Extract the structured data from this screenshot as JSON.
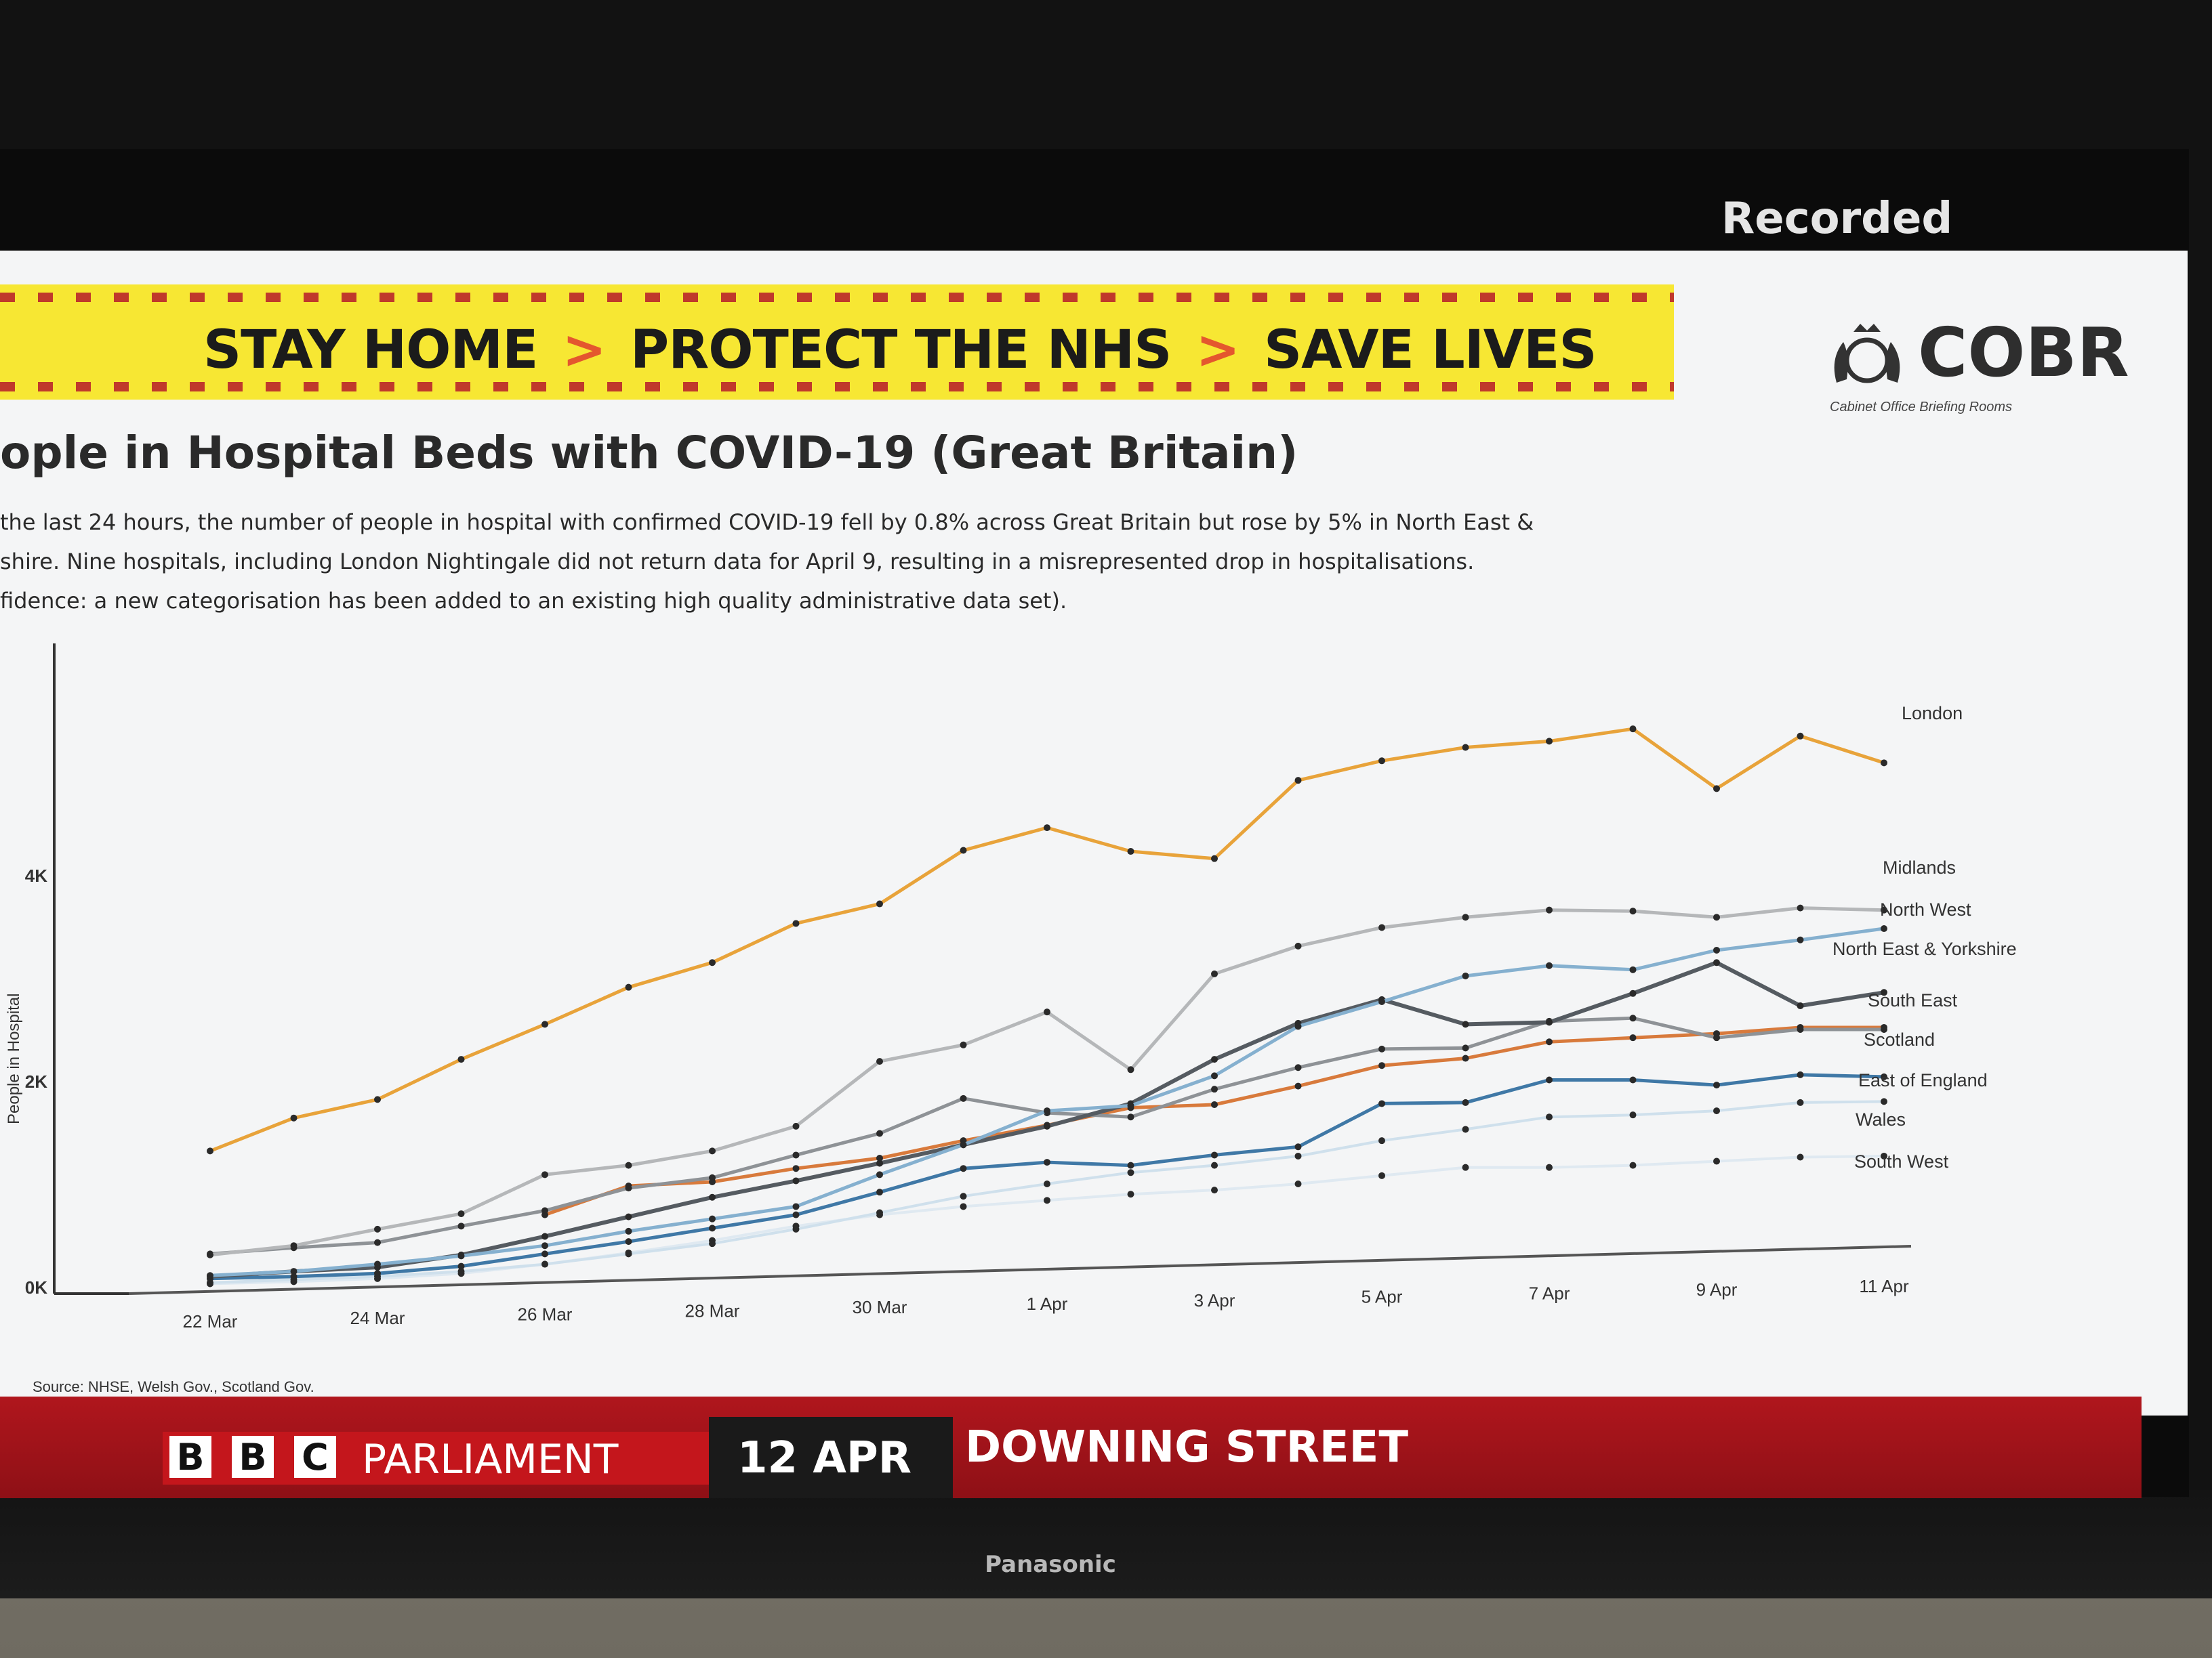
{
  "overlay": {
    "recorded": "Recorded"
  },
  "tv": {
    "brand": "Panasonic"
  },
  "banner": {
    "part1": "STAY HOME",
    "part2": "PROTECT THE NHS",
    "part3": "SAVE LIVES",
    "separator": ">"
  },
  "logo": {
    "name": "COBR",
    "subtitle": "Cabinet Office Briefing Rooms"
  },
  "slide": {
    "title": "ople in Hospital Beds with COVID-19 (Great Britain)",
    "desc_line1": "the last 24 hours, the number of people in hospital with confirmed COVID-19 fell by 0.8% across Great Britain but rose by 5% in North East &",
    "desc_line2": "shire. Nine hospitals, including London Nightingale did not return data for April 9, resulting in a misrepresented drop in hospitalisations.",
    "desc_line3": "fidence: a new categorisation has been added to an existing high quality administrative data set).",
    "source": "Source: NHSE, Welsh Gov., Scotland Gov."
  },
  "ticker": {
    "b1": "B",
    "b2": "B",
    "b3": "C",
    "channel": "PARLIAMENT",
    "date": "12 APR",
    "location": "DOWNING STREET"
  },
  "chart_data": {
    "type": "line",
    "title": "ople in Hospital Beds with COVID-19 (Great Britain)",
    "ylabel": "People in Hospital",
    "xlabel": "",
    "ylim": [
      0,
      5000
    ],
    "yticks": [
      {
        "v": 0,
        "label": "0K"
      },
      {
        "v": 2000,
        "label": "2K"
      },
      {
        "v": 4000,
        "label": "4K"
      }
    ],
    "xticks": [
      {
        "i": 0,
        "label": "22 Mar"
      },
      {
        "i": 2,
        "label": "24 Mar"
      },
      {
        "i": 4,
        "label": "26 Mar"
      },
      {
        "i": 6,
        "label": "28 Mar"
      },
      {
        "i": 8,
        "label": "30 Mar"
      },
      {
        "i": 10,
        "label": "1 Apr"
      },
      {
        "i": 12,
        "label": "3 Apr"
      },
      {
        "i": 14,
        "label": "5 Apr"
      },
      {
        "i": 16,
        "label": "7 Apr"
      },
      {
        "i": 18,
        "label": "9 Apr"
      },
      {
        "i": 20,
        "label": "11 Apr"
      }
    ],
    "x": [
      "22 Mar",
      "23 Mar",
      "24 Mar",
      "25 Mar",
      "26 Mar",
      "27 Mar",
      "28 Mar",
      "29 Mar",
      "30 Mar",
      "31 Mar",
      "1 Apr",
      "2 Apr",
      "3 Apr",
      "4 Apr",
      "5 Apr",
      "6 Apr",
      "7 Apr",
      "8 Apr",
      "9 Apr",
      "10 Apr",
      "11 Apr",
      "12 Apr"
    ],
    "grid": false,
    "legend": "right-end labels",
    "series": [
      {
        "name": "London",
        "color": "#e8a33a",
        "width": 5,
        "values": [
          1320,
          1640,
          1820,
          2210,
          2550,
          2910,
          3150,
          3530,
          3720,
          4240,
          4460,
          4230,
          4160,
          4920,
          5110,
          5240,
          5300,
          5420,
          4840,
          5350,
          5090,
          null
        ]
      },
      {
        "name": "Midlands",
        "color": "#b5b7b9",
        "width": 5,
        "values": [
          310,
          400,
          560,
          710,
          1090,
          1180,
          1320,
          1560,
          2190,
          2350,
          2670,
          2110,
          3040,
          3310,
          3490,
          3590,
          3660,
          3650,
          3590,
          3680,
          3660,
          null
        ]
      },
      {
        "name": "North West",
        "color": "#85b0cf",
        "width": 5,
        "values": [
          110,
          150,
          220,
          300,
          400,
          540,
          660,
          780,
          1090,
          1380,
          1710,
          1760,
          2050,
          2530,
          2770,
          3020,
          3120,
          3080,
          3270,
          3370,
          3480,
          null
        ]
      },
      {
        "name": "North East & Yorkshire",
        "color": "#555b61",
        "width": 6,
        "values": [
          100,
          150,
          190,
          310,
          490,
          680,
          870,
          1030,
          1200,
          1380,
          1560,
          1780,
          2210,
          2560,
          2790,
          2550,
          2570,
          2850,
          3150,
          2730,
          2860,
          null
        ]
      },
      {
        "name": "South East",
        "color": "#8e9296",
        "width": 5,
        "values": [
          320,
          380,
          430,
          590,
          740,
          960,
          1060,
          1280,
          1490,
          1830,
          1690,
          1650,
          1920,
          2130,
          2310,
          2320,
          2580,
          2610,
          2420,
          2500,
          2500,
          null
        ]
      },
      {
        "name": "Scotland",
        "color": "#d87a3c",
        "width": 5,
        "values": [
          null,
          null,
          null,
          null,
          700,
          980,
          1020,
          1150,
          1250,
          1420,
          1570,
          1740,
          1770,
          1950,
          2150,
          2220,
          2380,
          2420,
          2460,
          2520,
          2520,
          null
        ]
      },
      {
        "name": "East of England",
        "color": "#3f78a6",
        "width": 5,
        "values": [
          80,
          100,
          130,
          200,
          320,
          440,
          570,
          700,
          920,
          1150,
          1210,
          1180,
          1280,
          1360,
          1780,
          1790,
          2010,
          2010,
          1960,
          2060,
          2040,
          null
        ]
      },
      {
        "name": "Wales",
        "color": "#cfe0ec",
        "width": 4,
        "values": [
          40,
          70,
          100,
          150,
          220,
          320,
          420,
          560,
          720,
          880,
          1000,
          1110,
          1180,
          1270,
          1420,
          1530,
          1650,
          1670,
          1710,
          1790,
          1800,
          null
        ]
      },
      {
        "name": "South West",
        "color": "#dfe9f1",
        "width": 4,
        "values": [
          30,
          50,
          80,
          130,
          220,
          330,
          450,
          590,
          700,
          780,
          840,
          900,
          940,
          1000,
          1080,
          1160,
          1160,
          1180,
          1220,
          1260,
          1270,
          null
        ]
      }
    ]
  }
}
